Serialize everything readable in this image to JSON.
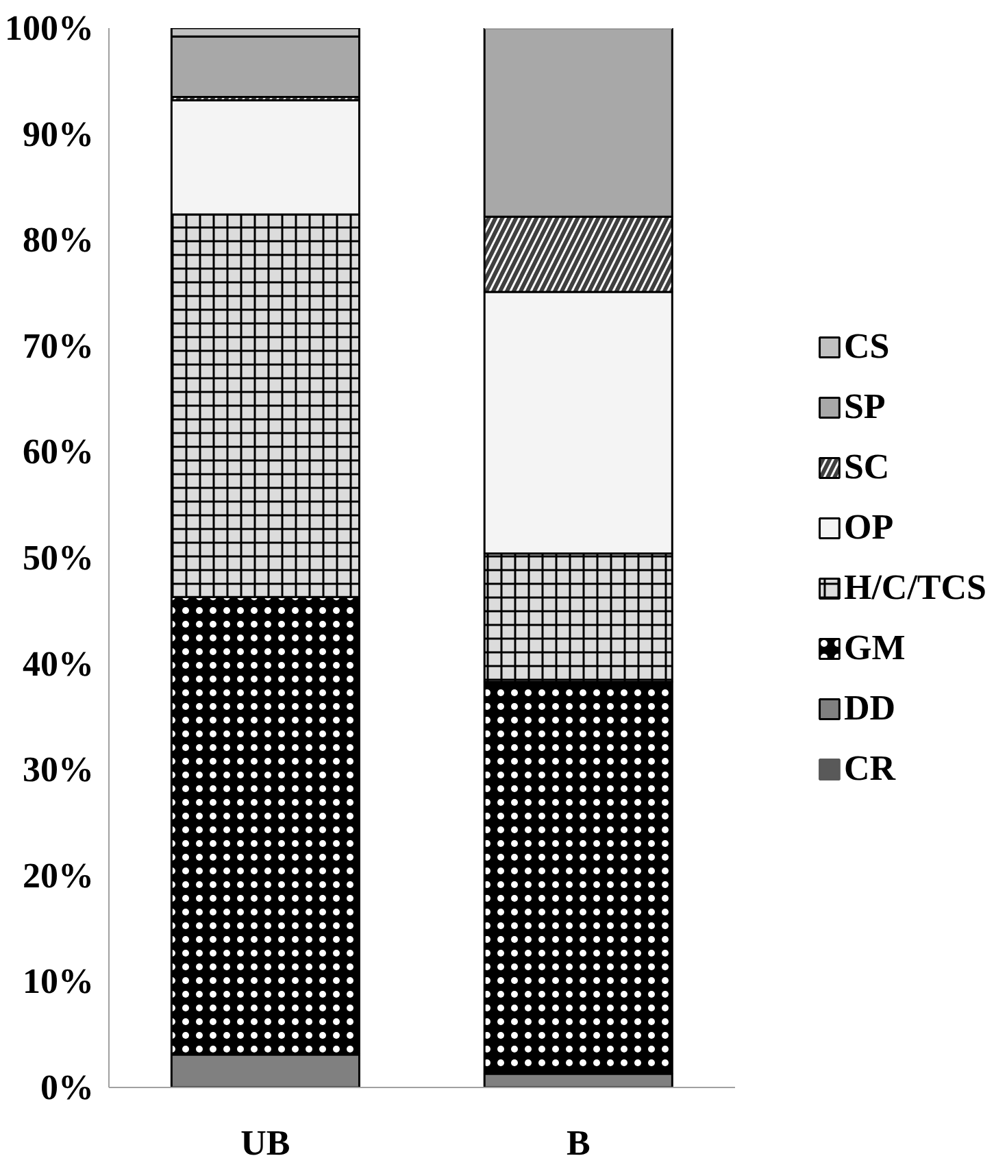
{
  "chart_data": {
    "type": "bar",
    "stacked": true,
    "categories": [
      "UB",
      "B"
    ],
    "series": [
      {
        "name": "CR",
        "color": "#595959",
        "values": [
          0,
          0
        ]
      },
      {
        "name": "DD",
        "color": "#808080",
        "values": [
          3.1,
          1.3
        ]
      },
      {
        "name": "GM",
        "color": "#000000",
        "values": [
          43.2,
          37.0
        ]
      },
      {
        "name": "H/C/TCS",
        "color": "#dcdcdc",
        "values": [
          36.1,
          12.1
        ]
      },
      {
        "name": "OP",
        "color": "#f4f4f4",
        "values": [
          10.8,
          24.7
        ]
      },
      {
        "name": "SC",
        "color": "#404040",
        "values": [
          0.3,
          7.1
        ]
      },
      {
        "name": "SP",
        "color": "#a8a8a8",
        "values": [
          5.7,
          17.8
        ]
      },
      {
        "name": "CS",
        "color": "#c0c0c0",
        "values": [
          0.8,
          0.0
        ]
      }
    ],
    "ylim": [
      0,
      100
    ],
    "yticks": [
      {
        "value": 0,
        "label": "0%"
      },
      {
        "value": 10,
        "label": "10%"
      },
      {
        "value": 20,
        "label": "20%"
      },
      {
        "value": 30,
        "label": "30%"
      },
      {
        "value": 40,
        "label": "40%"
      },
      {
        "value": 50,
        "label": "50%"
      },
      {
        "value": 60,
        "label": "60%"
      },
      {
        "value": 70,
        "label": "70%"
      },
      {
        "value": 80,
        "label": "80%"
      },
      {
        "value": 90,
        "label": "90%"
      },
      {
        "value": 100,
        "label": "100%"
      }
    ],
    "grid": false,
    "legend": "right"
  }
}
